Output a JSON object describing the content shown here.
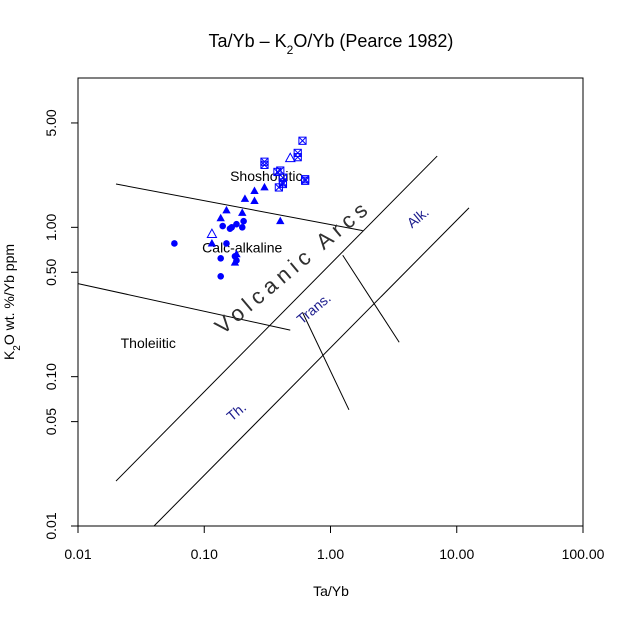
{
  "chart_data": {
    "type": "scatter",
    "title": "Ta/Yb – K2O/Yb (Pearce 1982)",
    "title_parts": [
      "Ta",
      "Yb – K",
      "2",
      "O",
      "Yb (Pearce 1982)"
    ],
    "xlabel": "Ta/Yb",
    "xlabel_parts": [
      "Ta",
      "Yb"
    ],
    "ylabel": "K2O wt. %/Yb ppm",
    "ylabel_parts": [
      "K",
      "2",
      "O wt. %",
      "Yb ppm"
    ],
    "x_scale": "log",
    "y_scale": "log",
    "xlim": [
      0.01,
      100
    ],
    "ylim": [
      0.01,
      10
    ],
    "x_ticks": [
      {
        "value": 0.01,
        "label": "0.01"
      },
      {
        "value": 0.1,
        "label": "0.10"
      },
      {
        "value": 1,
        "label": "1.00"
      },
      {
        "value": 10,
        "label": "10.00"
      },
      {
        "value": 100,
        "label": "100.00"
      }
    ],
    "y_ticks": [
      {
        "value": 0.01,
        "label": "0.01"
      },
      {
        "value": 0.05,
        "label": "0.05"
      },
      {
        "value": 0.1,
        "label": "0.10"
      },
      {
        "value": 0.5,
        "label": "0.50"
      },
      {
        "value": 1,
        "label": "1.00"
      },
      {
        "value": 5,
        "label": "5.00"
      }
    ],
    "grid": false,
    "boundary_lines": [
      [
        [
          0.02,
          0.02
        ],
        [
          7,
          3
        ]
      ],
      [
        [
          0.04,
          0.01
        ],
        [
          12.5,
          1.35
        ]
      ],
      [
        [
          0.02,
          1.95
        ],
        [
          1.8,
          0.95
        ]
      ],
      [
        [
          0.01,
          0.42
        ],
        [
          0.48,
          0.205
        ]
      ],
      [
        [
          0.6,
          0.27
        ],
        [
          1.4,
          0.06
        ]
      ],
      [
        [
          1.25,
          0.65
        ],
        [
          3.5,
          0.17
        ]
      ]
    ],
    "field_labels": [
      {
        "text": "Shoshonitic",
        "x": 0.31,
        "y": 2.05,
        "rotation": 0,
        "style": "black"
      },
      {
        "text": "Calc-alkaline",
        "x": 0.2,
        "y": 0.68,
        "rotation": 0,
        "style": "black"
      },
      {
        "text": "Tholeiitic",
        "x": 0.036,
        "y": 0.155,
        "rotation": 0,
        "style": "black"
      },
      {
        "text": "Volcanic Arcs",
        "x": 0.55,
        "y": 0.5,
        "rotation": -40,
        "style": "arcs"
      },
      {
        "text": "Th.",
        "x": 0.19,
        "y": 0.055,
        "rotation": -40,
        "style": "blue"
      },
      {
        "text": "Trans.",
        "x": 0.78,
        "y": 0.27,
        "rotation": -40,
        "style": "blue"
      },
      {
        "text": "Alk.",
        "x": 5.2,
        "y": 1.1,
        "rotation": -40,
        "style": "blue"
      }
    ],
    "series": [
      {
        "marker": "filled-triangle",
        "color": "#0000ff",
        "points": [
          [
            0.135,
            1.15
          ],
          [
            0.15,
            1.3
          ],
          [
            0.2,
            1.25
          ],
          [
            0.21,
            1.55
          ],
          [
            0.25,
            1.5
          ],
          [
            0.25,
            1.75
          ],
          [
            0.3,
            1.85
          ],
          [
            0.4,
            1.1
          ],
          [
            0.115,
            0.78
          ],
          [
            0.175,
            0.58
          ],
          [
            0.18,
            0.66
          ]
        ]
      },
      {
        "marker": "filled-circle",
        "color": "#0000ff",
        "points": [
          [
            0.058,
            0.78
          ],
          [
            0.14,
            1.02
          ],
          [
            0.15,
            0.78
          ],
          [
            0.16,
            0.98
          ],
          [
            0.165,
            1.0
          ],
          [
            0.18,
            1.05
          ],
          [
            0.2,
            1.0
          ],
          [
            0.205,
            1.1
          ],
          [
            0.135,
            0.62
          ],
          [
            0.175,
            0.64
          ],
          [
            0.18,
            0.6
          ],
          [
            0.135,
            0.47
          ]
        ]
      },
      {
        "marker": "open-triangle",
        "color": "#0000ff",
        "points": [
          [
            0.115,
            0.9
          ],
          [
            0.48,
            2.9
          ]
        ]
      },
      {
        "marker": "boxed-x",
        "color": "#0000ff",
        "points": [
          [
            0.3,
            2.75
          ],
          [
            0.3,
            2.62
          ],
          [
            0.38,
            2.35
          ],
          [
            0.4,
            2.4
          ],
          [
            0.42,
            2.15
          ],
          [
            0.42,
            1.95
          ],
          [
            0.39,
            1.85
          ],
          [
            0.63,
            2.1
          ],
          [
            0.63,
            2.05
          ],
          [
            0.6,
            3.8
          ],
          [
            0.55,
            2.95
          ],
          [
            0.55,
            3.15
          ],
          [
            0.42,
            2.0
          ]
        ]
      }
    ]
  }
}
